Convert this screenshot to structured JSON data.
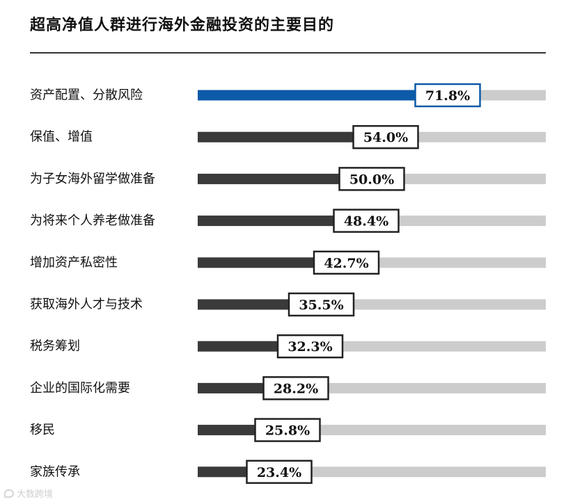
{
  "chart_data": {
    "type": "bar",
    "orientation": "horizontal",
    "title": "超高净值人群进行海外金融投资的主要目的",
    "categories": [
      "资产配置、分散风险",
      "保值、增值",
      "为子女海外留学做准备",
      "为将来个人养老做准备",
      "增加资产私密性",
      "获取海外人才与技术",
      "税务筹划",
      "企业的国际化需要",
      "移民",
      "家族传承"
    ],
    "values": [
      71.8,
      54.0,
      50.0,
      48.4,
      42.7,
      35.5,
      32.3,
      28.2,
      25.8,
      23.4
    ],
    "value_labels": [
      "71.8%",
      "54.0%",
      "50.0%",
      "48.4%",
      "42.7%",
      "35.5%",
      "32.3%",
      "28.2%",
      "25.8%",
      "23.4%"
    ],
    "unit": "%",
    "xlim": [
      0,
      100
    ],
    "grid": false,
    "legend": "none",
    "colors": {
      "highlight": "#0d5aa8",
      "bar": "#3a3a3a",
      "track": "#cccccc",
      "label_border": "#222222"
    }
  },
  "watermark": {
    "text": "大数跨境"
  }
}
